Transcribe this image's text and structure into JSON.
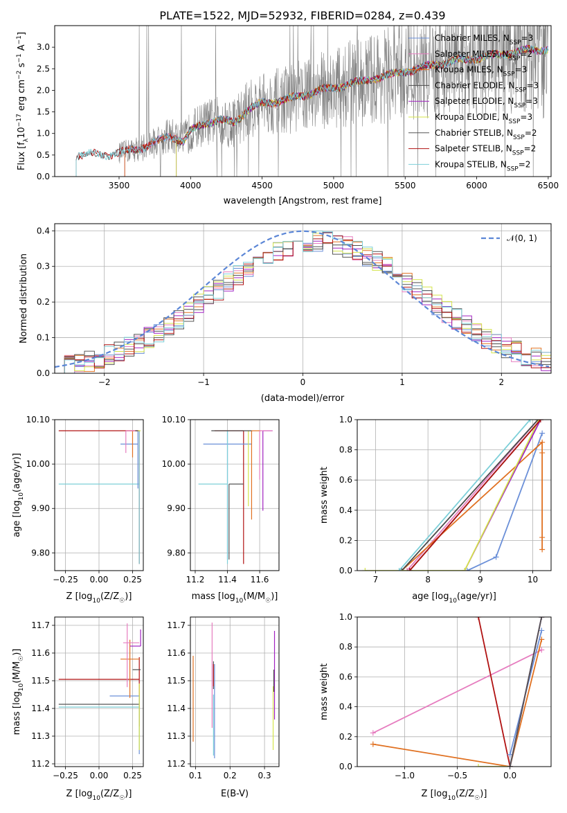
{
  "figure": {
    "title": "PLATE=1522, MJD=52932, FIBERID=0284, z=0.439"
  },
  "colors": {
    "Chabrier MILES": "#6a8fd8",
    "Salpeter MILES": "#e67cbf",
    "Kroupa MILES": "#e07020",
    "Chabrier ELODIE": "#4a4a4a",
    "Salpeter ELODIE": "#a020c0",
    "Kroupa ELODIE": "#d4e44a",
    "Chabrier STELIB": "#555555",
    "Salpeter STELIB": "#b01010",
    "Kroupa STELIB": "#7ccfd8",
    "observed": "#808080",
    "gaussian": "#5b86d6",
    "grid": "#b0b0b0"
  },
  "chart_data": [
    {
      "id": "spectrum",
      "type": "line",
      "title": "PLATE=1522, MJD=52932, FIBERID=0284, z=0.439",
      "xlabel": "wavelength [Angstrom, rest frame]",
      "ylabel": "Flux [f_λ 10^-17 erg cm^-2 s^-1 A^-1]",
      "xlim": [
        3050,
        6520
      ],
      "ylim": [
        0,
        3.5
      ],
      "xticks": [
        3500,
        4000,
        4500,
        5000,
        5500,
        6000,
        6500
      ],
      "yticks": [
        0.0,
        0.5,
        1.0,
        1.5,
        2.0,
        2.5,
        3.0
      ],
      "grid": false,
      "legend_position": "top-right",
      "legend": [
        {
          "label": "Chabrier MILES, N_SSP=3",
          "base": "Chabrier MILES, N",
          "sub": "SSP",
          "tail": "=3"
        },
        {
          "label": "Salpeter MILES, N_SSP=2",
          "base": "Salpeter MILES, N",
          "sub": "SSP",
          "tail": "=2"
        },
        {
          "label": "Kroupa MILES, N_SSP=3",
          "base": "Kroupa MILES, N",
          "sub": "SSP",
          "tail": "=3"
        },
        {
          "label": "Chabrier ELODIE, N_SSP=3",
          "base": "Chabrier ELODIE, N",
          "sub": "SSP",
          "tail": "=3"
        },
        {
          "label": "Salpeter ELODIE, N_SSP=3",
          "base": "Salpeter ELODIE, N",
          "sub": "SSP",
          "tail": "=3"
        },
        {
          "label": "Kroupa ELODIE, N_SSP=3",
          "base": "Kroupa ELODIE, N",
          "sub": "SSP",
          "tail": "=3"
        },
        {
          "label": "Chabrier STELIB, N_SSP=2",
          "base": "Chabrier STELIB, N",
          "sub": "SSP",
          "tail": "=2"
        },
        {
          "label": "Salpeter STELIB, N_SSP=2",
          "base": "Salpeter STELIB, N",
          "sub": "SSP",
          "tail": "=2"
        },
        {
          "label": "Kroupa STELIB, N_SSP=2",
          "base": "Kroupa STELIB, N",
          "sub": "SSP",
          "tail": "=2"
        }
      ],
      "continuum": [
        [
          3200,
          0.5
        ],
        [
          3300,
          0.52
        ],
        [
          3400,
          0.5
        ],
        [
          3500,
          0.55
        ],
        [
          3600,
          0.62
        ],
        [
          3700,
          0.72
        ],
        [
          3800,
          0.85
        ],
        [
          3850,
          0.95
        ],
        [
          3900,
          0.9
        ],
        [
          3950,
          0.8
        ],
        [
          4000,
          1.05
        ],
        [
          4100,
          1.25
        ],
        [
          4200,
          1.3
        ],
        [
          4300,
          1.25
        ],
        [
          4400,
          1.55
        ],
        [
          4500,
          1.7
        ],
        [
          4600,
          1.75
        ],
        [
          4700,
          1.8
        ],
        [
          4800,
          1.9
        ],
        [
          4900,
          2.0
        ],
        [
          5000,
          2.05
        ],
        [
          5100,
          2.15
        ],
        [
          5200,
          2.2
        ],
        [
          5300,
          2.3
        ],
        [
          5400,
          2.35
        ],
        [
          5500,
          2.45
        ],
        [
          5600,
          2.5
        ],
        [
          5700,
          2.6
        ],
        [
          5800,
          2.65
        ],
        [
          5900,
          2.7
        ],
        [
          6000,
          2.75
        ],
        [
          6100,
          2.8
        ],
        [
          6200,
          2.85
        ],
        [
          6300,
          2.9
        ],
        [
          6400,
          2.95
        ],
        [
          6500,
          2.95
        ]
      ],
      "observed_range": [
        3500,
        6500
      ],
      "models_start": {
        "STELIB": 3200,
        "MILES": 3540,
        "ELODIE": 3900
      }
    },
    {
      "id": "residuals",
      "type": "line",
      "xlabel": "(data-model)/error",
      "ylabel": "Normed distribution",
      "xlim": [
        -2.5,
        2.5
      ],
      "ylim": [
        0,
        0.42
      ],
      "xticks": [
        -2,
        -1,
        0,
        1,
        2
      ],
      "yticks": [
        0.0,
        0.1,
        0.2,
        0.3,
        0.4
      ],
      "grid": true,
      "legend_position": "top-right",
      "legend": [
        {
          "label": "𝒩(0, 1)"
        }
      ],
      "gaussian": {
        "mean": 0,
        "sigma": 1
      },
      "histogram": {
        "bin_width": 0.1,
        "peak_shift": 0.15,
        "peak_sigma": 1.05,
        "peak_amp": 0.37
      }
    },
    {
      "id": "age_vs_Z",
      "type": "scatter",
      "xlabel": "Z [log10(Z/Z☉)]",
      "ylabel": "age [log10(age/yr)]",
      "xlim": [
        -0.33,
        0.33
      ],
      "ylim": [
        9.76,
        10.1
      ],
      "xticks": [
        -0.25,
        0.0,
        0.25
      ],
      "yticks": [
        9.8,
        9.9,
        10.0,
        10.1
      ],
      "grid": true,
      "points": [
        {
          "model": "Salpeter STELIB",
          "x": 0.3,
          "y": 10.075,
          "xerr_lo": 0.6,
          "xerr_hi": 0.0,
          "yerr_lo": 0.3,
          "yerr_hi": 0.0
        },
        {
          "model": "Kroupa STELIB",
          "x": 0.3,
          "y": 9.955,
          "xerr_lo": 0.6,
          "xerr_hi": 0.0,
          "yerr_lo": 0.18,
          "yerr_hi": 0.12
        },
        {
          "model": "Chabrier MILES",
          "x": 0.29,
          "y": 10.045,
          "xerr_lo": 0.13,
          "xerr_hi": 0.0,
          "yerr_lo": 0.1,
          "yerr_hi": 0.03
        },
        {
          "model": "Kroupa MILES",
          "x": 0.25,
          "y": 10.075,
          "xerr_lo": 0.05,
          "xerr_hi": 0.05,
          "yerr_lo": 0.06,
          "yerr_hi": 0.0
        },
        {
          "model": "Salpeter MILES",
          "x": 0.2,
          "y": 10.075,
          "xerr_lo": 0.0,
          "xerr_hi": 0.1,
          "yerr_lo": 0.05,
          "yerr_hi": 0.0
        },
        {
          "model": "Chabrier ELODIE",
          "x": 0.3,
          "y": 10.075,
          "xerr_lo": 0.03,
          "xerr_hi": 0.0,
          "yerr_lo": 0.0,
          "yerr_hi": 0.0
        },
        {
          "model": "Kroupa ELODIE",
          "x": 0.31,
          "y": 10.075,
          "xerr_lo": 0.02,
          "xerr_hi": 0.0,
          "yerr_lo": 0.0,
          "yerr_hi": 0.0
        }
      ]
    },
    {
      "id": "age_vs_mass",
      "type": "scatter",
      "xlabel": "mass [log10(M/M☉)]",
      "ylabel": "",
      "xlim": [
        11.17,
        11.72
      ],
      "ylim": [
        9.76,
        10.1
      ],
      "xticks": [
        11.2,
        11.4,
        11.6
      ],
      "yticks": [
        9.8,
        9.9,
        10.0,
        10.1
      ],
      "grid": true,
      "points": [
        {
          "model": "Salpeter STELIB",
          "x": 11.5,
          "y": 10.075,
          "xerr_lo": 0.18,
          "xerr_hi": 0.0,
          "yerr_lo": 0.3,
          "yerr_hi": 0.0
        },
        {
          "model": "Chabrier MILES",
          "x": 11.4,
          "y": 10.045,
          "xerr_lo": 0.15,
          "xerr_hi": 0.15,
          "yerr_lo": 0.26,
          "yerr_hi": 0.03
        },
        {
          "model": "Kroupa STELIB",
          "x": 11.4,
          "y": 9.955,
          "xerr_lo": 0.18,
          "xerr_hi": 0.0,
          "yerr_lo": 0.18,
          "yerr_hi": 0.12
        },
        {
          "model": "Chabrier STELIB",
          "x": 11.41,
          "y": 9.955,
          "xerr_lo": 0.0,
          "xerr_hi": 0.09,
          "yerr_lo": 0.17,
          "yerr_hi": 0.0
        },
        {
          "model": "Kroupa MILES",
          "x": 11.55,
          "y": 10.075,
          "xerr_lo": 0.0,
          "xerr_hi": 0.06,
          "yerr_lo": 0.2,
          "yerr_hi": 0.0
        },
        {
          "model": "Kroupa ELODIE",
          "x": 11.53,
          "y": 10.075,
          "xerr_lo": 0.0,
          "xerr_hi": 0.0,
          "yerr_lo": 0.17,
          "yerr_hi": 0.0
        },
        {
          "model": "Salpeter ELODIE",
          "x": 11.62,
          "y": 10.075,
          "xerr_lo": 0.0,
          "xerr_hi": 0.06,
          "yerr_lo": 0.18,
          "yerr_hi": 0.0
        },
        {
          "model": "Salpeter MILES",
          "x": 11.6,
          "y": 10.075,
          "xerr_lo": 0.0,
          "xerr_hi": 0.08,
          "yerr_lo": 0.11,
          "yerr_hi": 0.0
        },
        {
          "model": "Chabrier ELODIE",
          "x": 11.55,
          "y": 10.075,
          "xerr_lo": 0.25,
          "xerr_hi": 0.0,
          "yerr_lo": 0.0,
          "yerr_hi": 0.0
        }
      ]
    },
    {
      "id": "massweight_vs_age",
      "type": "line",
      "xlabel": "age [log10(age/yr)]",
      "ylabel": "mass weight",
      "xlim": [
        6.65,
        10.35
      ],
      "ylim": [
        0,
        1.0
      ],
      "xticks": [
        7,
        8,
        9,
        10
      ],
      "yticks": [
        0.0,
        0.2,
        0.4,
        0.6,
        0.8,
        1.0
      ],
      "grid": true,
      "series": [
        {
          "model": "Chabrier MILES",
          "points": [
            [
              8.75,
              0.0
            ],
            [
              9.3,
              0.09
            ],
            [
              10.18,
              0.91
            ]
          ]
        },
        {
          "model": "Salpeter MILES",
          "points": [
            [
              7.6,
              0.0
            ],
            [
              10.1,
              1.0
            ]
          ]
        },
        {
          "model": "Kroupa MILES",
          "points": [
            [
              7.5,
              0.0
            ],
            [
              10.18,
              0.85
            ],
            [
              10.18,
              0.78
            ],
            [
              10.18,
              0.22
            ],
            [
              10.18,
              0.14
            ]
          ]
        },
        {
          "model": "Chabrier ELODIE",
          "points": [
            [
              7.5,
              0.0
            ],
            [
              10.1,
              1.0
            ]
          ]
        },
        {
          "model": "Salpeter ELODIE",
          "points": [
            [
              8.7,
              0.0
            ],
            [
              10.15,
              1.0
            ]
          ]
        },
        {
          "model": "Kroupa ELODIE",
          "points": [
            [
              6.8,
              0.0
            ],
            [
              8.7,
              0.0
            ],
            [
              10.12,
              1.0
            ]
          ]
        },
        {
          "model": "Chabrier STELIB",
          "points": [
            [
              7.65,
              0.0
            ],
            [
              10.15,
              1.0
            ]
          ]
        },
        {
          "model": "Salpeter STELIB",
          "points": [
            [
              7.65,
              0.0
            ],
            [
              10.15,
              1.0
            ]
          ]
        },
        {
          "model": "Kroupa STELIB",
          "points": [
            [
              7.45,
              0.0
            ],
            [
              9.95,
              1.0
            ]
          ]
        }
      ]
    },
    {
      "id": "mass_vs_Z",
      "type": "scatter",
      "xlabel": "Z [log10(Z/Z☉)]",
      "ylabel": "mass [log10(M/M☉)]",
      "xlim": [
        -0.33,
        0.33
      ],
      "ylim": [
        11.19,
        11.73
      ],
      "xticks": [
        -0.25,
        0.0,
        0.25
      ],
      "yticks": [
        11.2,
        11.3,
        11.4,
        11.5,
        11.6,
        11.7
      ],
      "grid": true,
      "points": [
        {
          "model": "Salpeter STELIB",
          "x": 0.3,
          "y": 11.505,
          "xerr_lo": 0.6,
          "xerr_hi": 0.0,
          "yerr_lo": 0.17,
          "yerr_hi": 0.08
        },
        {
          "model": "Chabrier STELIB",
          "x": 0.3,
          "y": 11.415,
          "xerr_lo": 0.6,
          "xerr_hi": 0.0,
          "yerr_lo": 0.0,
          "yerr_hi": 0.0
        },
        {
          "model": "Kroupa STELIB",
          "x": 0.3,
          "y": 11.405,
          "xerr_lo": 0.6,
          "xerr_hi": 0.0,
          "yerr_lo": 0.0,
          "yerr_hi": 0.0
        },
        {
          "model": "Chabrier MILES",
          "x": 0.3,
          "y": 11.445,
          "xerr_lo": 0.22,
          "xerr_hi": 0.0,
          "yerr_lo": 0.21,
          "yerr_hi": 0.0
        },
        {
          "model": "Kroupa MILES",
          "x": 0.23,
          "y": 11.578,
          "xerr_lo": 0.07,
          "xerr_hi": 0.07,
          "yerr_lo": 0.14,
          "yerr_hi": 0.07
        },
        {
          "model": "Salpeter MILES",
          "x": 0.21,
          "y": 11.637,
          "xerr_lo": 0.03,
          "xerr_hi": 0.09,
          "yerr_lo": 0.16,
          "yerr_hi": 0.07
        },
        {
          "model": "Salpeter ELODIE",
          "x": 0.31,
          "y": 11.625,
          "xerr_lo": 0.08,
          "xerr_hi": 0.0,
          "yerr_lo": 0.0,
          "yerr_hi": 0.06
        },
        {
          "model": "Chabrier ELODIE",
          "x": 0.27,
          "y": 11.54,
          "xerr_lo": 0.02,
          "xerr_hi": 0.04,
          "yerr_lo": 0.0,
          "yerr_hi": 0.0
        },
        {
          "model": "Kroupa ELODIE",
          "x": 0.3,
          "y": 11.49,
          "xerr_lo": 0.0,
          "xerr_hi": 0.0,
          "yerr_lo": 0.24,
          "yerr_hi": 0.0
        }
      ]
    },
    {
      "id": "mass_vs_EBV",
      "type": "scatter",
      "xlabel": "E(B-V)",
      "ylabel": "",
      "xlim": [
        0.085,
        0.342
      ],
      "ylim": [
        11.19,
        11.73
      ],
      "xticks": [
        0.1,
        0.2,
        0.3
      ],
      "yticks": [
        11.2,
        11.3,
        11.4,
        11.5,
        11.6,
        11.7
      ],
      "grid": true,
      "points": [
        {
          "model": "Kroupa MILES",
          "x": 0.093,
          "y": 11.44,
          "yerr_lo": 0.16,
          "yerr_hi": 0.15
        },
        {
          "model": "Salpeter MILES",
          "x": 0.148,
          "y": 11.52,
          "yerr_lo": 0.19,
          "yerr_hi": 0.19
        },
        {
          "model": "Chabrier STELIB",
          "x": 0.152,
          "y": 11.52,
          "yerr_lo": 0.05,
          "yerr_hi": 0.05
        },
        {
          "model": "Salpeter STELIB",
          "x": 0.152,
          "y": 11.52,
          "yerr_lo": 0.04,
          "yerr_hi": 0.04
        },
        {
          "model": "Chabrier MILES",
          "x": 0.155,
          "y": 11.42,
          "yerr_lo": 0.2,
          "yerr_hi": 0.14
        },
        {
          "model": "Kroupa STELIB",
          "x": 0.152,
          "y": 11.34,
          "yerr_lo": 0.11,
          "yerr_hi": 0.11
        },
        {
          "model": "Salpeter ELODIE",
          "x": 0.329,
          "y": 11.58,
          "yerr_lo": 0.22,
          "yerr_hi": 0.1
        },
        {
          "model": "Kroupa ELODIE",
          "x": 0.325,
          "y": 11.38,
          "yerr_lo": 0.13,
          "yerr_hi": 0.1
        },
        {
          "model": "Chabrier ELODIE",
          "x": 0.327,
          "y": 11.5,
          "yerr_lo": 0.04,
          "yerr_hi": 0.04
        }
      ]
    },
    {
      "id": "massweight_vs_Z",
      "type": "line",
      "xlabel": "Z [log10(Z/Z☉)]",
      "ylabel": "mass weight",
      "xlim": [
        -1.45,
        0.39
      ],
      "ylim": [
        0,
        1.0
      ],
      "xticks": [
        -1.0,
        -0.5,
        0.0
      ],
      "yticks": [
        0.0,
        0.2,
        0.4,
        0.6,
        0.8,
        1.0
      ],
      "grid": true,
      "series": [
        {
          "model": "Salpeter MILES",
          "points": [
            [
              -1.3,
              0.225
            ],
            [
              0.3,
              0.78
            ]
          ]
        },
        {
          "model": "Kroupa MILES",
          "points": [
            [
              -1.3,
              0.15
            ],
            [
              0.0,
              0.0
            ],
            [
              0.3,
              0.85
            ]
          ]
        },
        {
          "model": "Salpeter STELIB",
          "points": [
            [
              -0.3,
              1.0
            ],
            [
              0.0,
              0.0
            ]
          ]
        },
        {
          "model": "Chabrier MILES",
          "points": [
            [
              0.0,
              0.08
            ],
            [
              0.3,
              0.91
            ]
          ]
        },
        {
          "model": "Kroupa STELIB",
          "points": [
            [
              0.0,
              0.0
            ],
            [
              0.3,
              1.0
            ]
          ]
        },
        {
          "model": "Kroupa ELODIE",
          "points": [
            [
              -0.3,
              0.0
            ],
            [
              0.0,
              0.0
            ],
            [
              0.3,
              1.0
            ]
          ]
        },
        {
          "model": "Chabrier ELODIE",
          "points": [
            [
              0.0,
              0.0
            ],
            [
              0.3,
              1.0
            ]
          ]
        },
        {
          "model": "Salpeter ELODIE",
          "points": [
            [
              0.0,
              0.0
            ],
            [
              0.3,
              1.0
            ]
          ]
        },
        {
          "model": "Chabrier STELIB",
          "points": [
            [
              0.0,
              0.0
            ],
            [
              0.3,
              1.0
            ]
          ]
        }
      ]
    }
  ]
}
